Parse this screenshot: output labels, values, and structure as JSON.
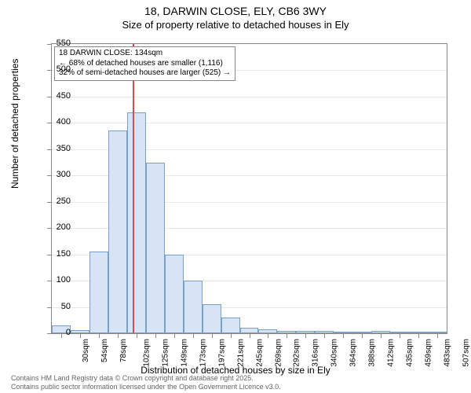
{
  "title": {
    "line1": "18, DARWIN CLOSE, ELY, CB6 3WY",
    "line2": "Size of property relative to detached houses in Ely"
  },
  "chart": {
    "type": "histogram",
    "background_color": "#ffffff",
    "grid_color": "#e8e8e8",
    "border_color": "#888888",
    "bar_fill": "#d6e4f5",
    "bar_border": "#7a9fc9",
    "highlight_color": "#d05050",
    "y_axis": {
      "title": "Number of detached properties",
      "min": 0,
      "max": 550,
      "tick_step": 50,
      "ticks": [
        0,
        50,
        100,
        150,
        200,
        250,
        300,
        350,
        400,
        450,
        500,
        550
      ]
    },
    "x_axis": {
      "title": "Distribution of detached houses by size in Ely",
      "labels": [
        "30sqm",
        "54sqm",
        "78sqm",
        "102sqm",
        "125sqm",
        "149sqm",
        "173sqm",
        "197sqm",
        "221sqm",
        "245sqm",
        "269sqm",
        "292sqm",
        "316sqm",
        "340sqm",
        "364sqm",
        "388sqm",
        "412sqm",
        "435sqm",
        "459sqm",
        "483sqm",
        "507sqm"
      ]
    },
    "values": [
      15,
      6,
      155,
      385,
      420,
      325,
      150,
      100,
      55,
      30,
      10,
      8,
      5,
      5,
      4,
      3,
      2,
      4,
      2,
      1,
      1
    ],
    "highlight_index": 4.3,
    "annotation": {
      "line1": "18 DARWIN CLOSE: 134sqm",
      "line2": "← 68% of detached houses are smaller (1,116)",
      "line3": "32% of semi-detached houses are larger (525) →"
    }
  },
  "footer": {
    "line1": "Contains HM Land Registry data © Crown copyright and database right 2025.",
    "line2": "Contains public sector information licensed under the Open Government Licence v3.0."
  }
}
